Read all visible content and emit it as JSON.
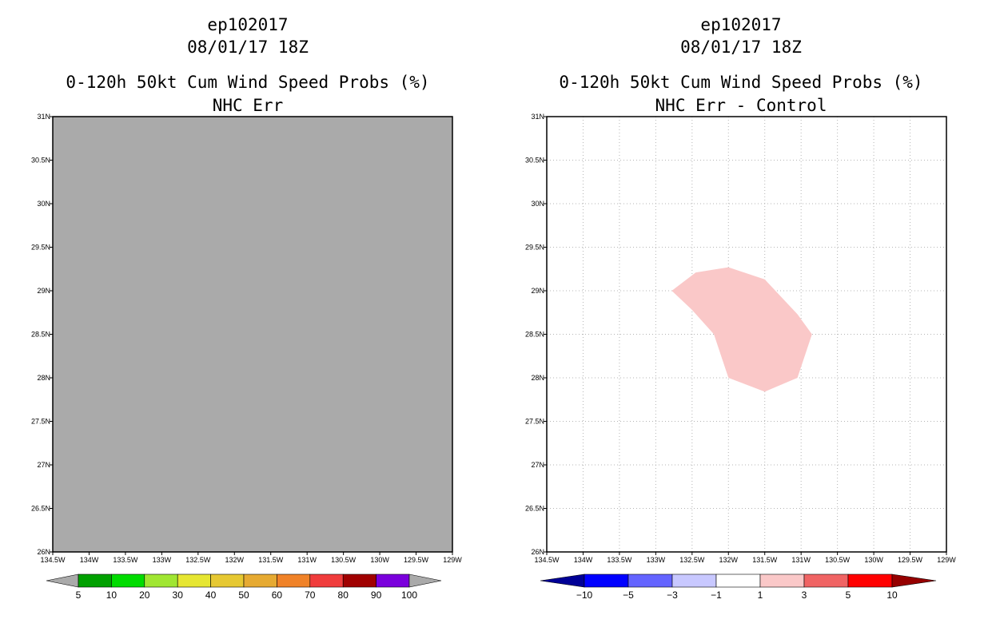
{
  "chart_data": [
    {
      "type": "heatmap",
      "title_lines": [
        "ep102017",
        "08/01/17 18Z",
        "0-120h 50kt Cum Wind Speed Probs (%)",
        "NHC Err"
      ],
      "xlabel": "",
      "ylabel": "",
      "xlim": [
        -134.5,
        -129.0
      ],
      "ylim": [
        26.0,
        31.0
      ],
      "x_ticks": [
        "134.5W",
        "134W",
        "133.5W",
        "133W",
        "132.5W",
        "132W",
        "131.5W",
        "131W",
        "130.5W",
        "130W",
        "129.5W",
        "129W"
      ],
      "y_ticks": [
        "26N",
        "26.5N",
        "27N",
        "27.5N",
        "28N",
        "28.5N",
        "29N",
        "29.5N",
        "30N",
        "30.5N",
        "31N"
      ],
      "grid": false,
      "field": "uniform grey (no data above lowest level)",
      "colors": {
        "fill": "#aaaaaa"
      },
      "colorbar": {
        "labels": [
          "5",
          "10",
          "20",
          "30",
          "40",
          "50",
          "60",
          "70",
          "80",
          "90",
          "100"
        ],
        "colors": [
          "#aaaaaa",
          "#00a000",
          "#00dc00",
          "#a0e632",
          "#e6e632",
          "#e6c832",
          "#e6aa32",
          "#f08228",
          "#f03c3c",
          "#a00000",
          "#7a00dc",
          "#aaaaaa"
        ]
      }
    },
    {
      "type": "heatmap",
      "title_lines": [
        "ep102017",
        "08/01/17 18Z",
        "0-120h 50kt Cum Wind Speed Probs (%)",
        "NHC Err - Control"
      ],
      "xlabel": "",
      "ylabel": "",
      "xlim": [
        -134.5,
        -129.0
      ],
      "ylim": [
        26.0,
        31.0
      ],
      "x_ticks": [
        "134.5W",
        "134W",
        "133.5W",
        "133W",
        "132.5W",
        "132W",
        "131.5W",
        "131W",
        "130.5W",
        "130W",
        "129.5W",
        "129W"
      ],
      "y_ticks": [
        "26N",
        "26.5N",
        "27N",
        "27.5N",
        "28N",
        "28.5N",
        "29N",
        "29.5N",
        "30N",
        "30.5N",
        "31N"
      ],
      "grid": true,
      "contour_region": {
        "level": "1 to 3",
        "color": "#fac8c8",
        "polygon_lonlat": [
          [
            -132.78,
            29.0
          ],
          [
            -132.45,
            29.21
          ],
          [
            -132.0,
            29.27
          ],
          [
            -131.5,
            29.13
          ],
          [
            -131.05,
            28.73
          ],
          [
            -130.85,
            28.5
          ],
          [
            -131.05,
            28.0
          ],
          [
            -131.5,
            27.84
          ],
          [
            -132.0,
            28.0
          ],
          [
            -132.2,
            28.5
          ],
          [
            -132.5,
            28.78
          ]
        ]
      },
      "colorbar": {
        "labels": [
          "-10",
          "-5",
          "-3",
          "-1",
          "1",
          "3",
          "5",
          "10"
        ],
        "colors": [
          "#000096",
          "#0000ff",
          "#6464ff",
          "#c8c8ff",
          "#ffffff",
          "#fac8c8",
          "#f06464",
          "#ff0000",
          "#960000"
        ]
      }
    }
  ]
}
